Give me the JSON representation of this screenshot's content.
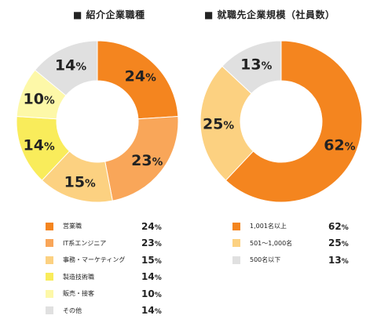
{
  "chart_data": [
    {
      "type": "pie",
      "title": "■ 紹介企業職種",
      "categories": [
        "営業職",
        "IT系エンジニア",
        "事務・マーケティング",
        "製造技術職",
        "販売・接客",
        "その他"
      ],
      "values": [
        24,
        23,
        15,
        14,
        10,
        14
      ],
      "colors": [
        "#f4851f",
        "#f9a659",
        "#fcd181",
        "#f9ec5b",
        "#fdf8a8",
        "#e0e0e0"
      ],
      "unit": "%"
    },
    {
      "type": "pie",
      "title": "■ 就職先企業規模（社員数）",
      "categories": [
        "1,001名以上",
        "501～1,000名",
        "500名以下"
      ],
      "values": [
        62,
        25,
        13
      ],
      "colors": [
        "#f4851f",
        "#fcd181",
        "#e0e0e0"
      ],
      "unit": "%"
    }
  ]
}
